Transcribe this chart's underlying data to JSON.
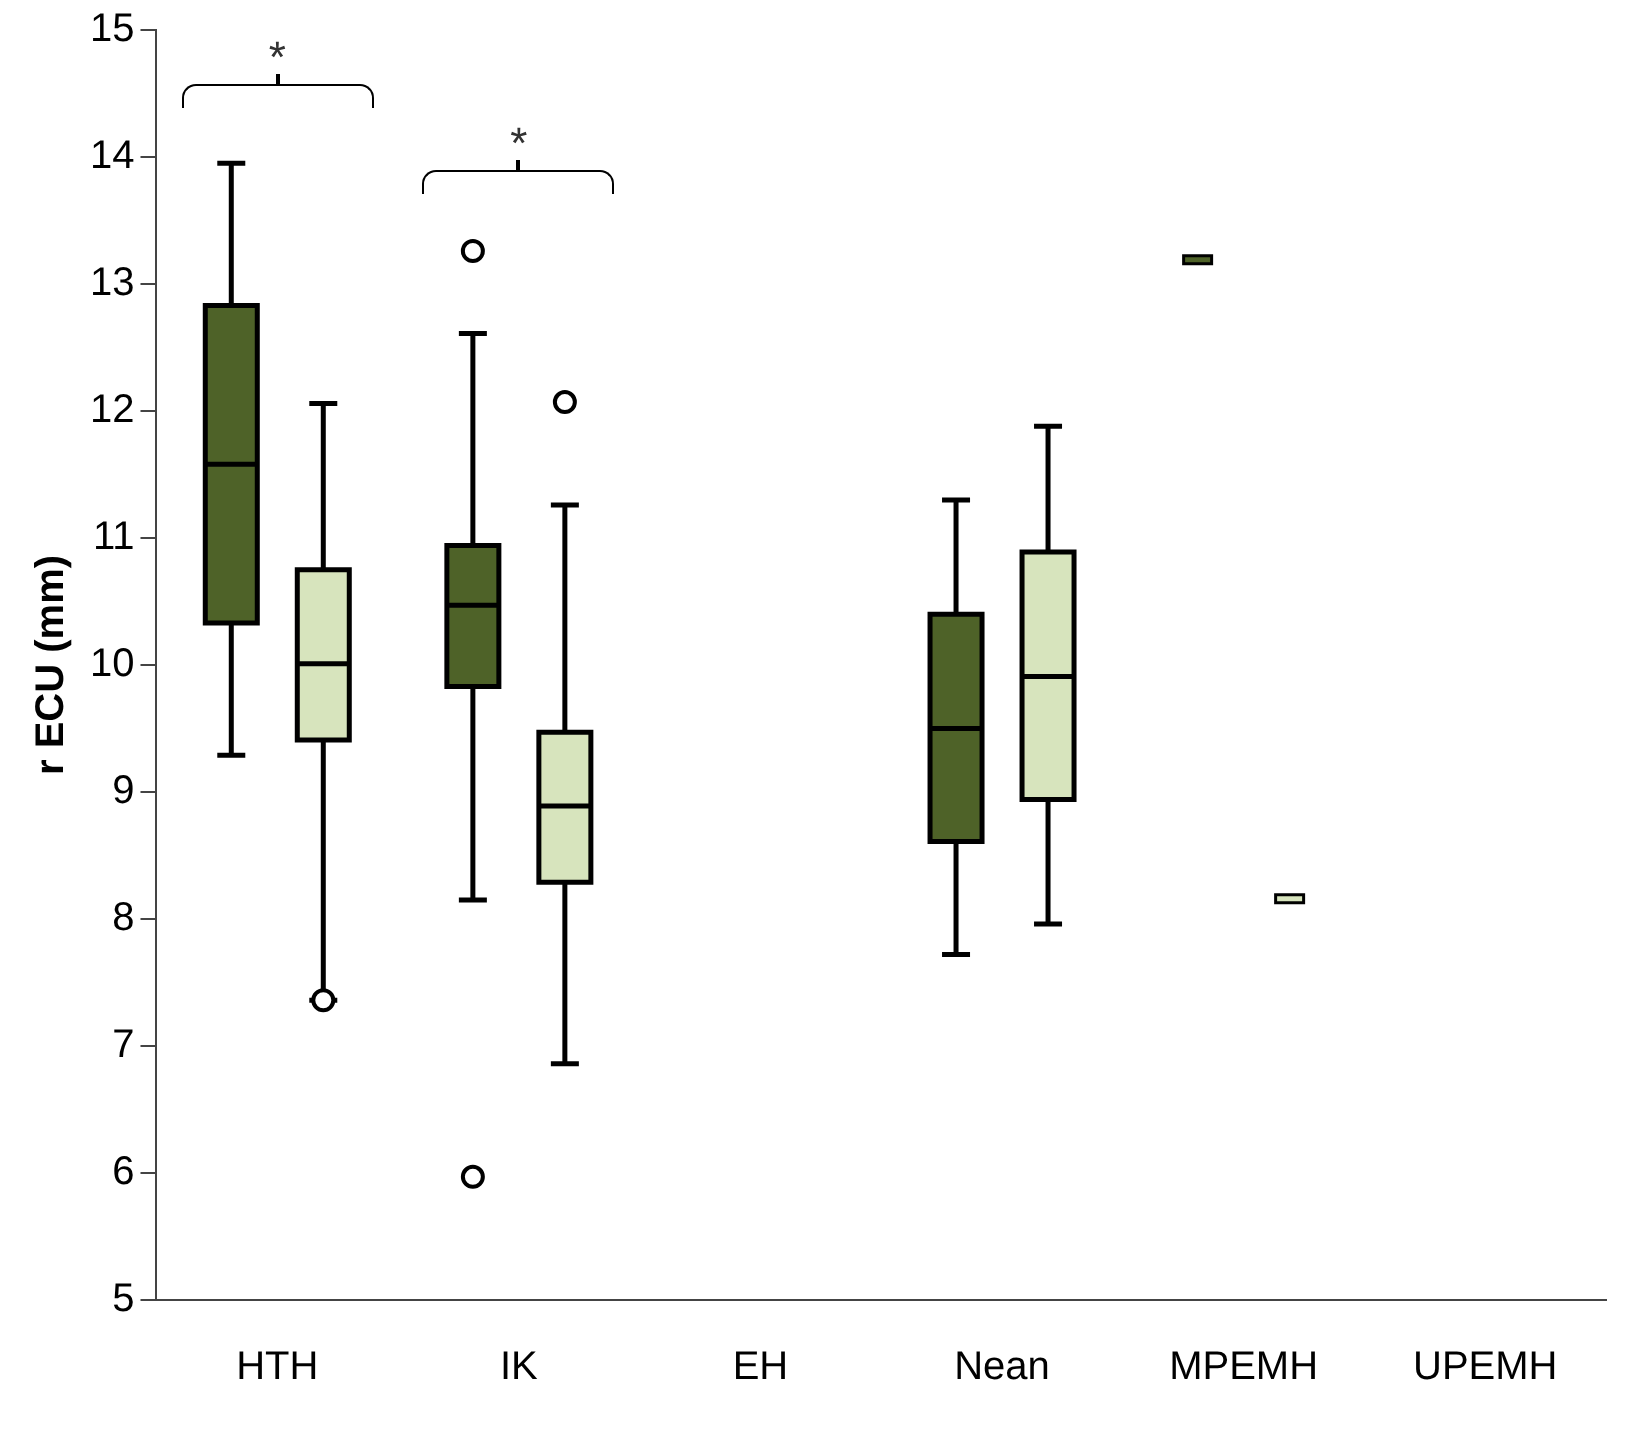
{
  "chart_data": {
    "type": "box",
    "ylabel": "r ECU (mm)",
    "categories": [
      "HTH",
      "IK",
      "EH",
      "Nean",
      "MPEMH",
      "UPEMH"
    ],
    "ylim": [
      5,
      15
    ],
    "yticks": [
      5,
      6,
      7,
      8,
      9,
      10,
      11,
      12,
      13,
      14,
      15
    ],
    "grid": false,
    "legend": false,
    "series": [
      {
        "color": "#4e6228",
        "boxes": [
          {
            "low": 9.29,
            "q1": 10.33,
            "median": 11.58,
            "q3": 12.83,
            "high": 13.95
          },
          {
            "low": 8.15,
            "q1": 9.83,
            "median": 10.47,
            "q3": 10.94,
            "high": 12.61,
            "outliers": [
              13.26,
              5.97
            ]
          },
          null,
          {
            "low": 7.72,
            "q1": 8.61,
            "median": 9.5,
            "q3": 10.4,
            "high": 11.3
          },
          {
            "low": 13.19,
            "q1": 13.19,
            "median": 13.19,
            "q3": 13.19,
            "high": 13.19
          },
          null
        ]
      },
      {
        "color": "#d7e4bd",
        "boxes": [
          {
            "low": 7.36,
            "q1": 9.41,
            "median": 10.01,
            "q3": 10.75,
            "high": 12.06,
            "outliers": [
              7.36
            ]
          },
          {
            "low": 6.86,
            "q1": 8.29,
            "median": 8.89,
            "q3": 9.47,
            "high": 11.26,
            "outliers": [
              12.07
            ]
          },
          null,
          {
            "low": 7.96,
            "q1": 8.94,
            "median": 9.91,
            "q3": 10.89,
            "high": 11.88
          },
          {
            "low": 8.16,
            "q1": 8.16,
            "median": 8.16,
            "q3": 8.16,
            "high": 8.16
          },
          null
        ]
      }
    ],
    "annotations": [
      "*",
      "*"
    ]
  }
}
